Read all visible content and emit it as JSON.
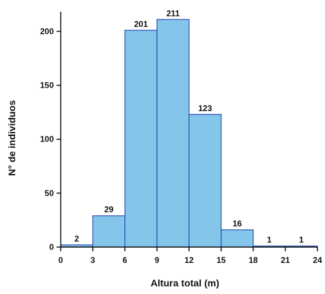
{
  "chart_data": {
    "type": "bar",
    "title": "",
    "xlabel": "Altura total (m)",
    "ylabel": "N° de individuos",
    "bins": [
      {
        "from": 0,
        "to": 3,
        "value": 2
      },
      {
        "from": 3,
        "to": 6,
        "value": 29
      },
      {
        "from": 6,
        "to": 9,
        "value": 201
      },
      {
        "from": 9,
        "to": 12,
        "value": 211
      },
      {
        "from": 12,
        "to": 15,
        "value": 123
      },
      {
        "from": 15,
        "to": 18,
        "value": 16
      },
      {
        "from": 18,
        "to": 21,
        "value": 1
      },
      {
        "from": 21,
        "to": 24,
        "value": 1
      }
    ],
    "xticks": [
      0,
      3,
      6,
      9,
      12,
      15,
      18,
      21,
      24
    ],
    "yticks": [
      0,
      50,
      100,
      150,
      200
    ],
    "xlim": [
      0,
      24
    ],
    "ylim": [
      0,
      215
    ],
    "grid": false,
    "bar_color": "#84c5ea",
    "bar_edge_color": "#2e4fb6"
  }
}
